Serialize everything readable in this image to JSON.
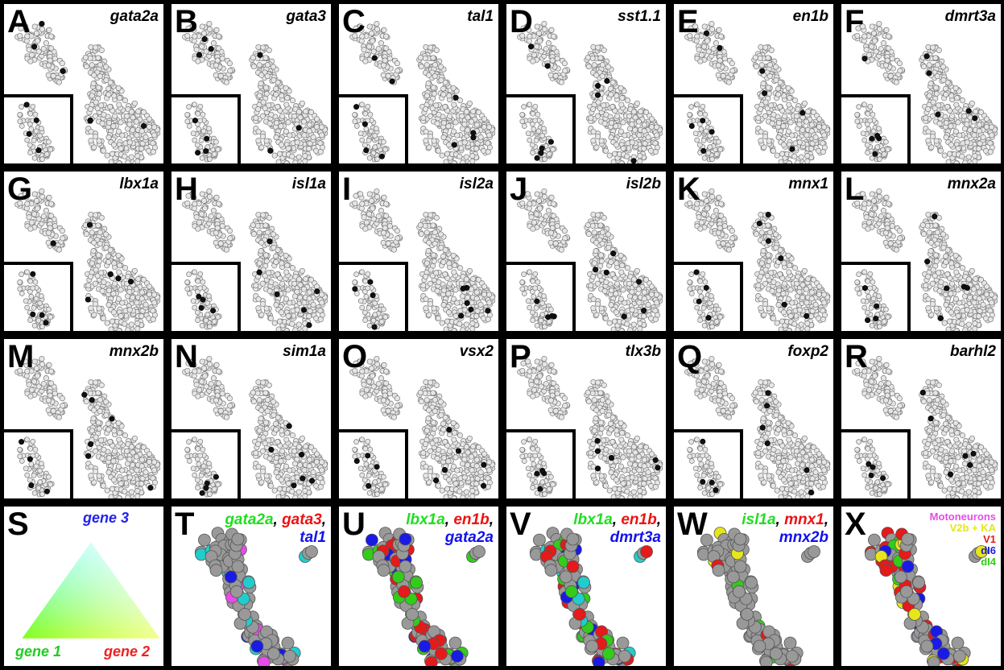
{
  "panels": [
    {
      "letter": "A",
      "gene": "gata2a"
    },
    {
      "letter": "B",
      "gene": "gata3"
    },
    {
      "letter": "C",
      "gene": "tal1"
    },
    {
      "letter": "D",
      "gene": "sst1.1"
    },
    {
      "letter": "E",
      "gene": "en1b"
    },
    {
      "letter": "F",
      "gene": "dmrt3a"
    },
    {
      "letter": "G",
      "gene": "lbx1a"
    },
    {
      "letter": "H",
      "gene": "isl1a"
    },
    {
      "letter": "I",
      "gene": "isl2a"
    },
    {
      "letter": "J",
      "gene": "isl2b"
    },
    {
      "letter": "K",
      "gene": "mnx1"
    },
    {
      "letter": "L",
      "gene": "mnx2a"
    },
    {
      "letter": "M",
      "gene": "mnx2b"
    },
    {
      "letter": "N",
      "gene": "sim1a"
    },
    {
      "letter": "O",
      "gene": "vsx2"
    },
    {
      "letter": "P",
      "gene": "tlx3b"
    },
    {
      "letter": "Q",
      "gene": "foxp2"
    },
    {
      "letter": "R",
      "gene": "barhl2"
    }
  ],
  "key": {
    "letter": "S",
    "gene3": "gene 3",
    "gene1": "gene 1",
    "gene2": "gene 2"
  },
  "overlays": [
    {
      "letter": "T",
      "g1": "gata2a",
      "g2": "gata3",
      "g3": "tal1"
    },
    {
      "letter": "U",
      "g1": "lbx1a",
      "g2": "en1b",
      "g3": "gata2a"
    },
    {
      "letter": "V",
      "g1": "lbx1a",
      "g2": "en1b",
      "g3": "dmrt3a"
    },
    {
      "letter": "W",
      "g1": "isl1a",
      "g2": "mnx1",
      "g3": "mnx2b"
    }
  ],
  "classes": {
    "letter": "X",
    "items": [
      {
        "label": "Motoneurons",
        "color": "#e64ce6"
      },
      {
        "label": "V2b + KA",
        "color": "#e6e61a"
      },
      {
        "label": "V1",
        "color": "#e61a1a"
      },
      {
        "label": "dI6",
        "color": "#1a1ae6"
      },
      {
        "label": "dI4",
        "color": "#33cc1a"
      }
    ]
  },
  "colors": {
    "gene1": "#22dd22",
    "gene2": "#ee1111",
    "gene3": "#1111ee",
    "cell": "#999999"
  }
}
